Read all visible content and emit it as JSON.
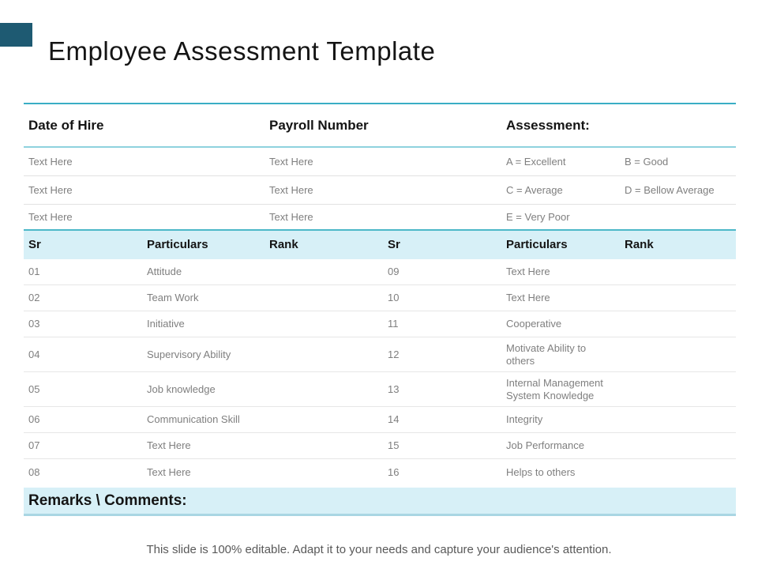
{
  "slide": {
    "title": "Employee Assessment Template",
    "footer_note": "This slide is 100% editable. Adapt it to your needs and capture your audience's attention.",
    "accent_color": "#1e5a72",
    "teal_line_color": "#3aaec5",
    "band_color": "#d7f0f7"
  },
  "info_table": {
    "headers": {
      "date_of_hire": "Date of Hire",
      "payroll_number": "Payroll Number",
      "assessment": "Assessment:"
    },
    "rows": [
      [
        "Text Here",
        "Text Here",
        "A = Excellent",
        "B = Good"
      ],
      [
        "Text Here",
        "Text Here",
        "C = Average",
        "D = Bellow Average"
      ],
      [
        "Text Here",
        "Text Here",
        "E = Very Poor",
        ""
      ]
    ]
  },
  "rank_table": {
    "headers": [
      "Sr",
      "Particulars",
      "Rank",
      "Sr",
      "Particulars",
      "Rank"
    ],
    "rows": [
      [
        "01",
        "Attitude",
        "",
        "09",
        "Text Here",
        ""
      ],
      [
        "02",
        "Team Work",
        "",
        "10",
        "Text Here",
        ""
      ],
      [
        "03",
        "Initiative",
        "",
        "11",
        "Cooperative",
        ""
      ],
      [
        "04",
        "Supervisory Ability",
        "",
        "12",
        "Motivate Ability to others",
        ""
      ],
      [
        "05",
        "Job knowledge",
        "",
        "13",
        "Internal Management System Knowledge",
        ""
      ],
      [
        "06",
        "Communication Skill",
        "",
        "14",
        "Integrity",
        ""
      ],
      [
        "07",
        "Text Here",
        "",
        "15",
        "Job Performance",
        ""
      ],
      [
        "08",
        "Text Here",
        "",
        "16",
        "Helps to others",
        ""
      ]
    ]
  },
  "remarks": {
    "label": "Remarks \\ Comments:"
  }
}
